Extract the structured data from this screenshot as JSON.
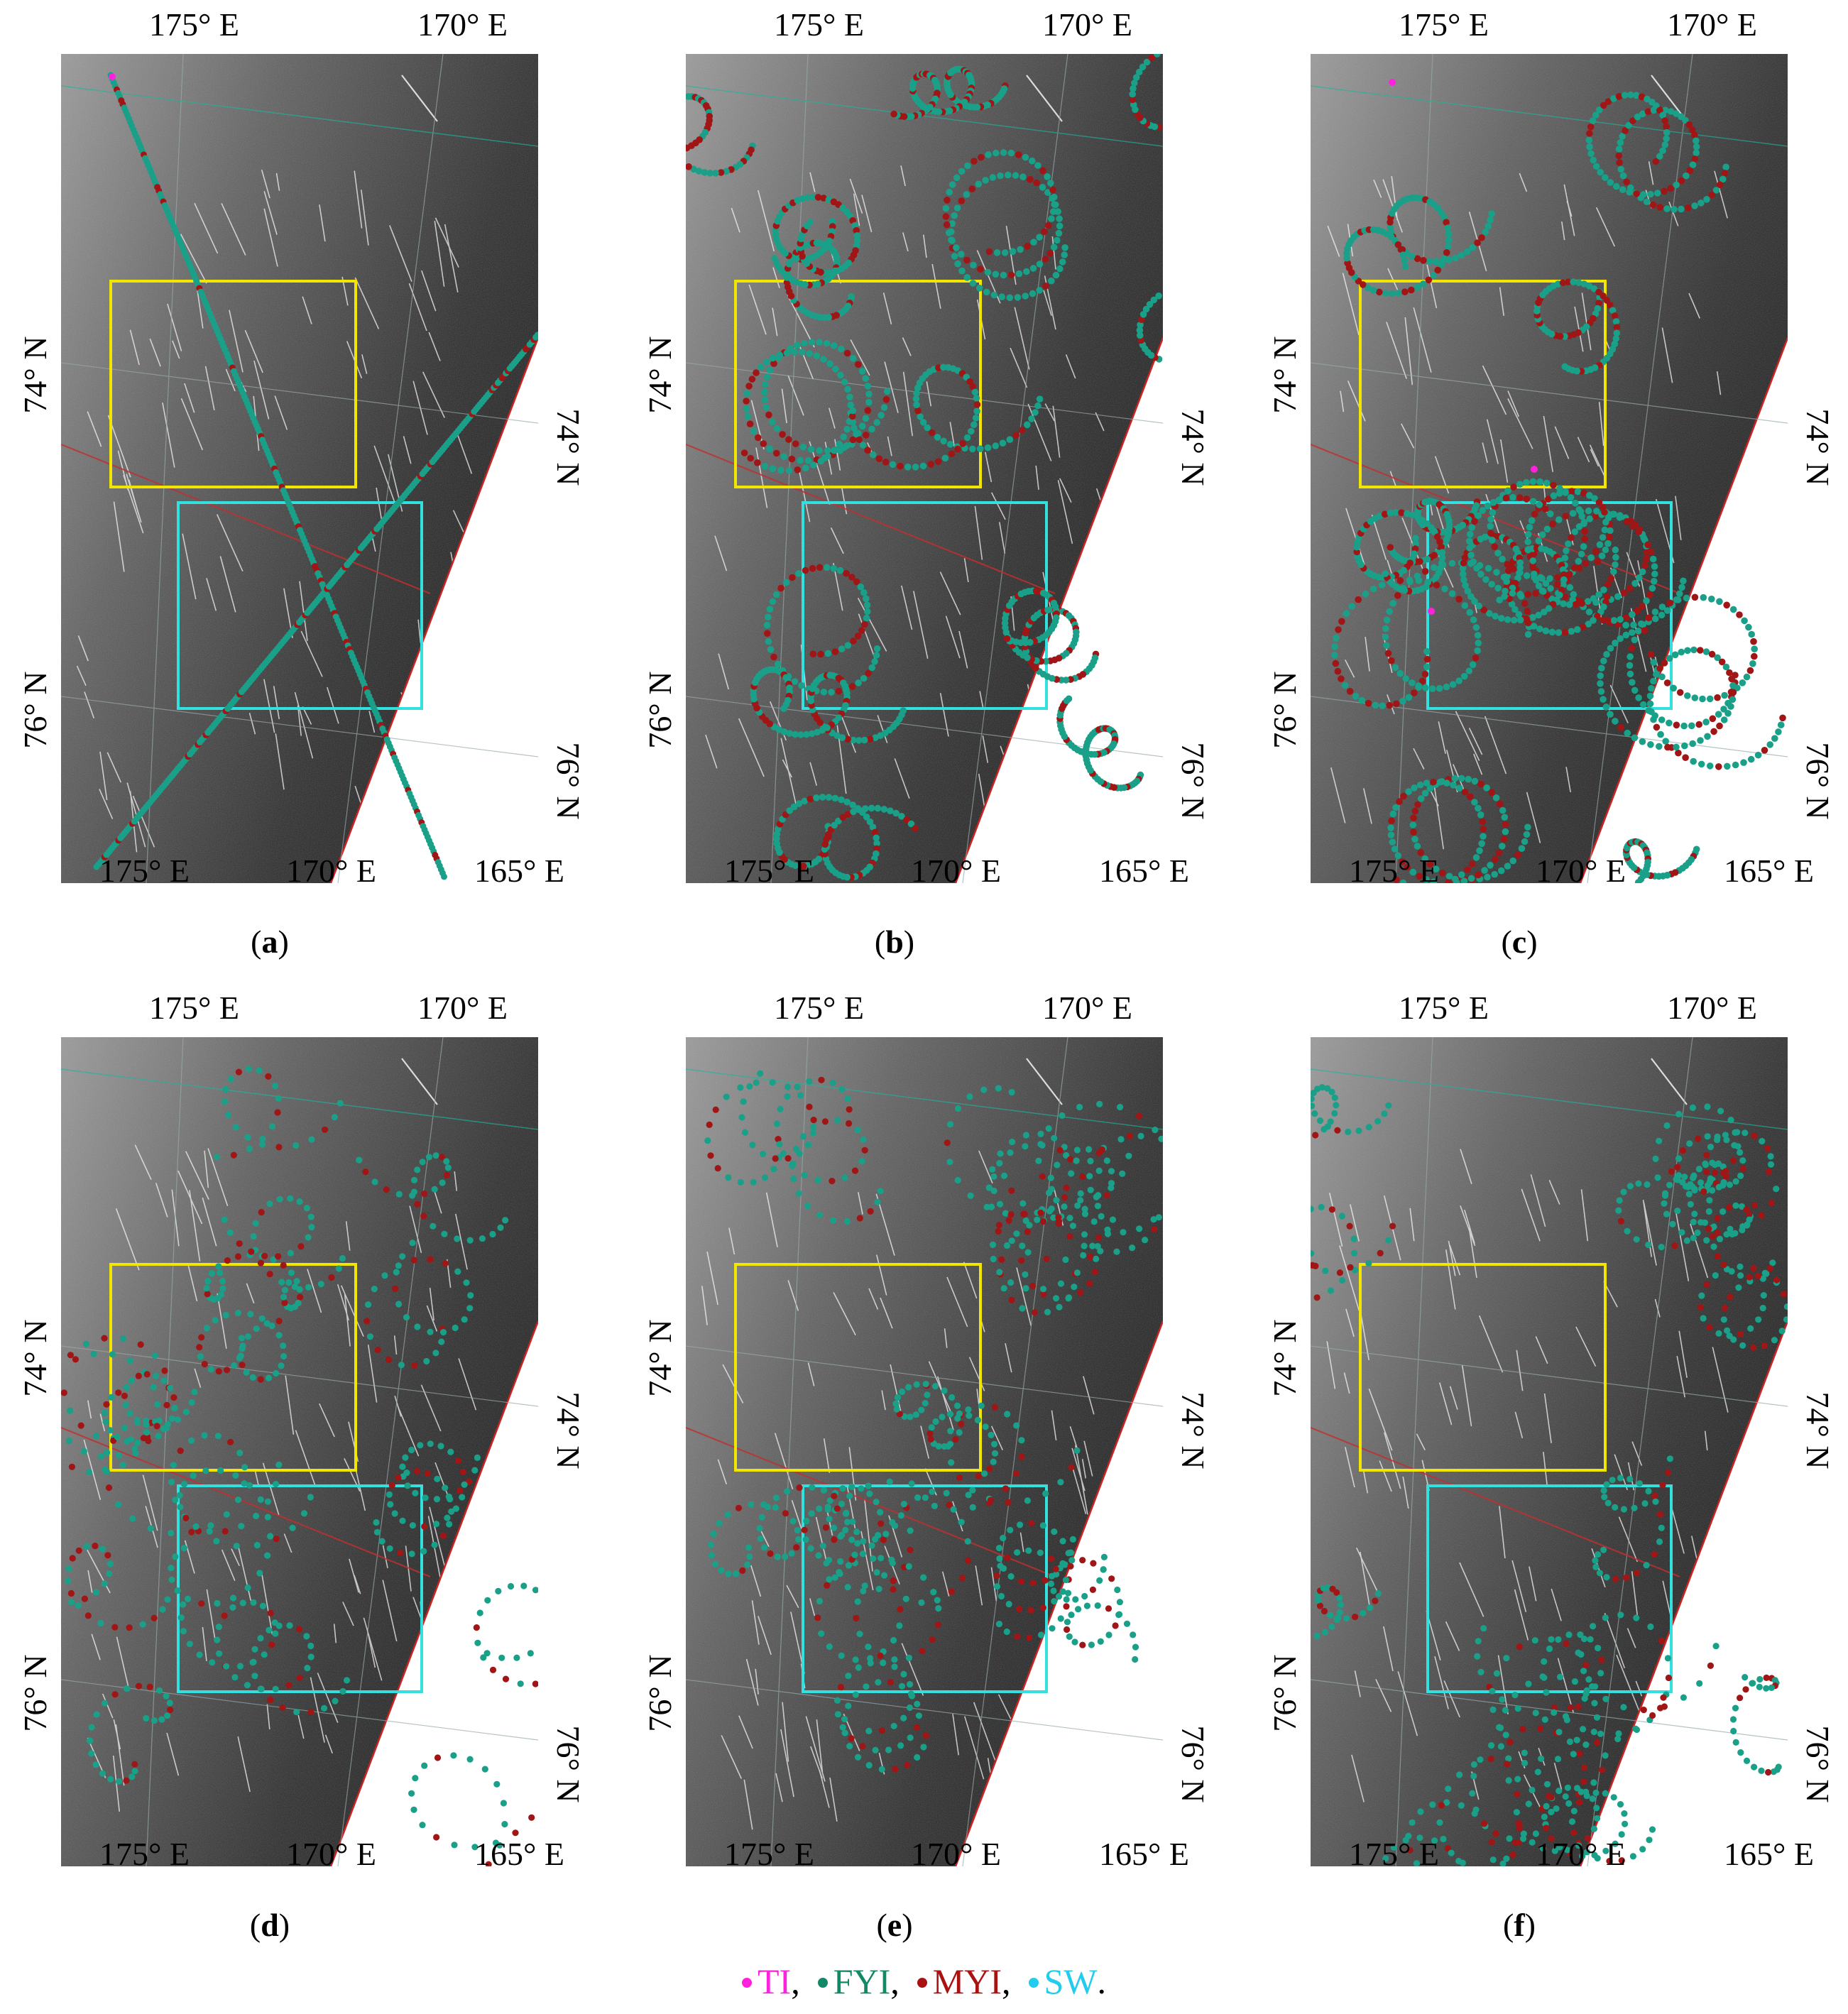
{
  "axes": {
    "lon_top": [
      "175° E",
      "170° E"
    ],
    "lon_bottom": [
      "175° E",
      "170° E",
      "165° E"
    ],
    "lat_left": [
      "74° N",
      "76° N"
    ],
    "lat_right": [
      "74° N",
      "76° N"
    ]
  },
  "panels": [
    {
      "letter": "a",
      "pattern": "cross"
    },
    {
      "letter": "b",
      "pattern": "loops"
    },
    {
      "letter": "c",
      "pattern": "loops"
    },
    {
      "letter": "d",
      "pattern": "sparse"
    },
    {
      "letter": "e",
      "pattern": "sparse"
    },
    {
      "letter": "f",
      "pattern": "sparse"
    }
  ],
  "regions": [
    {
      "name": "yellow-box",
      "color": "#f2e600"
    },
    {
      "name": "cyan-box",
      "color": "#33e0e0"
    }
  ],
  "legend": [
    {
      "label": "TI",
      "color": "#ff22dd"
    },
    {
      "label": "FYI",
      "color": "#118866"
    },
    {
      "label": "MYI",
      "color": "#aa1111"
    },
    {
      "label": "SW",
      "color": "#22ccee"
    }
  ],
  "colors": {
    "fyi_points": "#1aa088",
    "myi_points": "#a01515",
    "ti_points": "#ff22dd"
  }
}
